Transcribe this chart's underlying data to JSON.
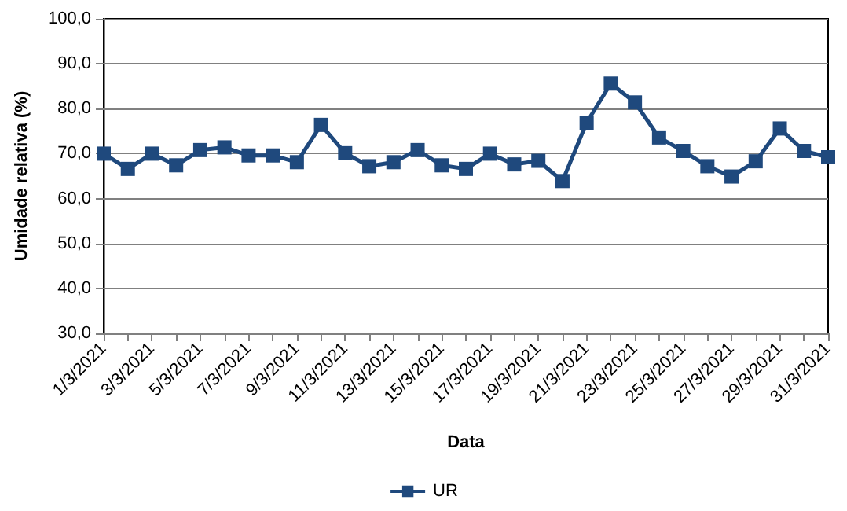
{
  "chart_data": {
    "type": "line",
    "xlabel": "Data",
    "ylabel": "Umidade relativa (%)",
    "categories": [
      "1/3/2021",
      null,
      "3/3/2021",
      null,
      "5/3/2021",
      null,
      "7/3/2021",
      null,
      "9/3/2021",
      null,
      "11/3/2021",
      null,
      "13/3/2021",
      null,
      "15/3/2021",
      null,
      "17/3/2021",
      null,
      "19/3/2021",
      null,
      "21/3/2021",
      null,
      "23/3/2021",
      null,
      "25/3/2021",
      null,
      "27/3/2021",
      null,
      "29/3/2021",
      null,
      "31/3/2021"
    ],
    "series": [
      {
        "name": "UR",
        "color": "#1f497d",
        "values": [
          70.0,
          66.6,
          70.0,
          67.4,
          70.8,
          71.4,
          69.6,
          69.6,
          68.1,
          76.4,
          70.1,
          67.2,
          68.1,
          70.8,
          67.4,
          66.6,
          70.0,
          67.6,
          68.4,
          63.9,
          76.9,
          85.6,
          81.4,
          73.6,
          70.6,
          67.2,
          64.9,
          68.3,
          75.6,
          70.6,
          69.2
        ]
      }
    ],
    "ylim": [
      30,
      100
    ],
    "yticks": [
      {
        "value": 30,
        "label": "30,0"
      },
      {
        "value": 40,
        "label": "40,0"
      },
      {
        "value": 50,
        "label": "50,0"
      },
      {
        "value": 60,
        "label": "60,0"
      },
      {
        "value": 70,
        "label": "70,0"
      },
      {
        "value": 80,
        "label": "80,0"
      },
      {
        "value": 90,
        "label": "90,0"
      },
      {
        "value": 100,
        "label": "100,0"
      }
    ],
    "grid": "y",
    "legend": "bottom",
    "marker": "square",
    "line_style": "solid"
  }
}
